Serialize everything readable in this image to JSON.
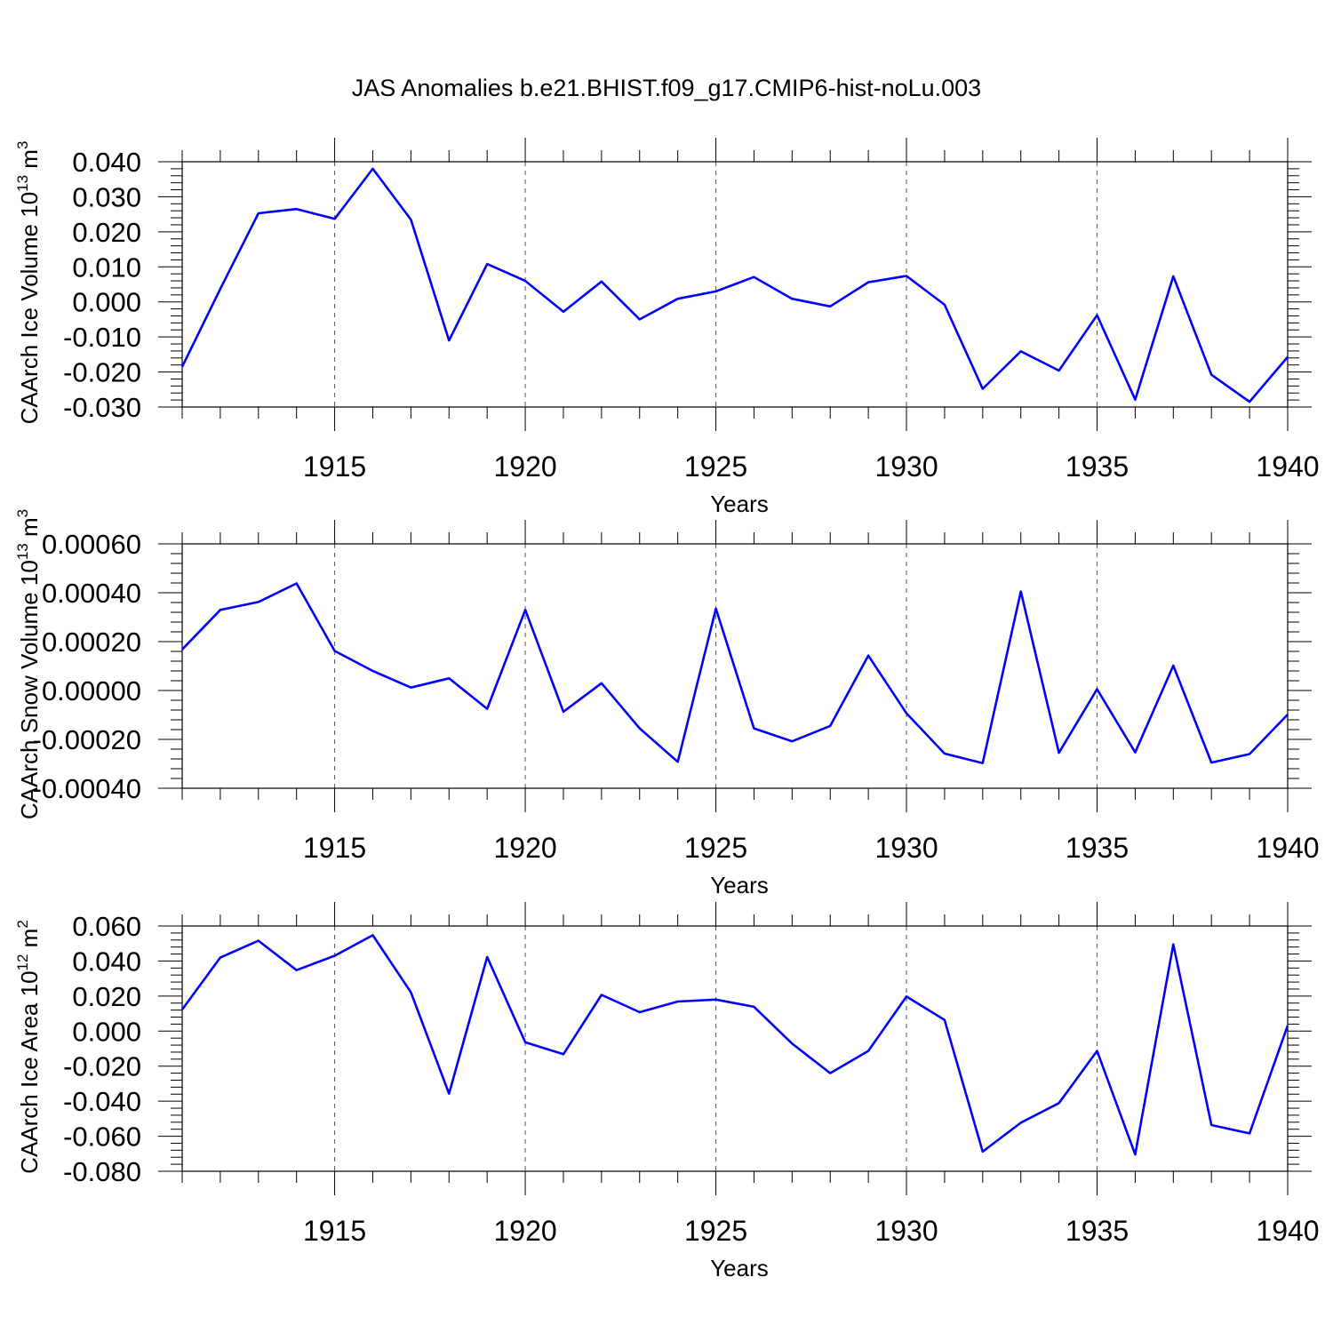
{
  "page_title": "JAS Anomalies b.e21.BHIST.f09_g17.CMIP6-hist-noLu.003",
  "colors": {
    "line": "#0000ff",
    "axis": "#000000",
    "grid": "#555555",
    "background": "#ffffff"
  },
  "chart_data": [
    {
      "type": "line",
      "ylabel": "CAArch Ice Volume 10",
      "ylabel_sup": "13",
      "ylabel_unit": " m",
      "ylabel_unit_sup": "3",
      "xlabel": "Years",
      "xlim": [
        1911,
        1940
      ],
      "ylim": [
        -0.03,
        0.04
      ],
      "x_ticks": [
        1915,
        1920,
        1925,
        1930,
        1935,
        1940
      ],
      "y_ticks": [
        -0.03,
        -0.02,
        -0.01,
        0.0,
        0.01,
        0.02,
        0.03,
        0.04
      ],
      "y_tick_labels": [
        "-0.030",
        "-0.020",
        "-0.010",
        "0.000",
        "0.010",
        "0.020",
        "0.030",
        "0.040"
      ],
      "vertical_grid": "dashed at major x ticks",
      "series": [
        {
          "x": [
            1911,
            1912,
            1913,
            1914,
            1915,
            1916,
            1917,
            1918,
            1919,
            1920,
            1921,
            1922,
            1923,
            1924,
            1925,
            1926,
            1927,
            1928,
            1929,
            1930,
            1931,
            1932,
            1933,
            1934,
            1935,
            1936,
            1937,
            1938,
            1939,
            1940
          ],
          "values": [
            -0.0185,
            0.0037,
            0.0253,
            0.0265,
            0.0237,
            0.038,
            0.0235,
            -0.011,
            0.0108,
            0.006,
            -0.0028,
            0.0058,
            -0.005,
            0.0009,
            0.003,
            0.0071,
            0.0009,
            -0.0013,
            0.0056,
            0.0074,
            -0.0008,
            -0.0248,
            -0.0141,
            -0.0196,
            -0.0038,
            -0.0279,
            0.0073,
            -0.0208,
            -0.0285,
            -0.0157
          ]
        }
      ]
    },
    {
      "type": "line",
      "ylabel": "CAArch Snow Volume 10",
      "ylabel_sup": "13",
      "ylabel_unit": " m",
      "ylabel_unit_sup": "3",
      "xlabel": "Years",
      "xlim": [
        1911,
        1940
      ],
      "ylim": [
        -0.0004,
        0.0006
      ],
      "x_ticks": [
        1915,
        1920,
        1925,
        1930,
        1935,
        1940
      ],
      "y_ticks": [
        -0.0004,
        -0.0002,
        0.0,
        0.0002,
        0.0004,
        0.0006
      ],
      "y_tick_labels": [
        "-0.00040",
        "-0.00020",
        "0.00000",
        "0.00020",
        "0.00040",
        "0.00060"
      ],
      "vertical_grid": "dashed at major x ticks",
      "series": [
        {
          "x": [
            1911,
            1912,
            1913,
            1914,
            1915,
            1916,
            1917,
            1918,
            1919,
            1920,
            1921,
            1922,
            1923,
            1924,
            1925,
            1926,
            1927,
            1928,
            1929,
            1930,
            1931,
            1932,
            1933,
            1934,
            1935,
            1936,
            1937,
            1938,
            1939,
            1940
          ],
          "values": [
            0.000168,
            0.00033,
            0.000362,
            0.000438,
            0.000162,
            8e-05,
            1.2e-05,
            5e-05,
            -7.5e-05,
            0.00033,
            -8.7e-05,
            3e-05,
            -0.000155,
            -0.000292,
            0.000335,
            -0.000155,
            -0.000208,
            -0.000145,
            0.000143,
            -9.3e-05,
            -0.000258,
            -0.000297,
            0.000405,
            -0.000255,
            5e-06,
            -0.000253,
            0.000102,
            -0.000295,
            -0.00026,
            -9.8e-05
          ]
        }
      ]
    },
    {
      "type": "line",
      "ylabel": "CAArch Ice Area 10",
      "ylabel_sup": "12",
      "ylabel_unit": " m",
      "ylabel_unit_sup": "2",
      "xlabel": "Years",
      "xlim": [
        1911,
        1940
      ],
      "ylim": [
        -0.08,
        0.06
      ],
      "x_ticks": [
        1915,
        1920,
        1925,
        1930,
        1935,
        1940
      ],
      "y_ticks": [
        -0.08,
        -0.06,
        -0.04,
        -0.02,
        0.0,
        0.02,
        0.04,
        0.06
      ],
      "y_tick_labels": [
        "-0.080",
        "-0.060",
        "-0.040",
        "-0.020",
        "0.000",
        "0.020",
        "0.040",
        "0.060"
      ],
      "vertical_grid": "dashed at major x ticks",
      "series": [
        {
          "x": [
            1911,
            1912,
            1913,
            1914,
            1915,
            1916,
            1917,
            1918,
            1919,
            1920,
            1921,
            1922,
            1923,
            1924,
            1925,
            1926,
            1927,
            1928,
            1929,
            1930,
            1931,
            1932,
            1933,
            1934,
            1935,
            1936,
            1937,
            1938,
            1939,
            1940
          ],
          "values": [
            0.0123,
            0.042,
            0.0516,
            0.0348,
            0.043,
            0.0547,
            0.0221,
            -0.0357,
            0.0423,
            -0.0064,
            -0.0132,
            0.0207,
            0.0108,
            0.0169,
            0.018,
            0.0139,
            -0.0071,
            -0.024,
            -0.0113,
            0.0197,
            0.0064,
            -0.0688,
            -0.0523,
            -0.0411,
            -0.0113,
            -0.0704,
            0.0495,
            -0.0536,
            -0.0584,
            0.0032
          ]
        }
      ]
    }
  ]
}
